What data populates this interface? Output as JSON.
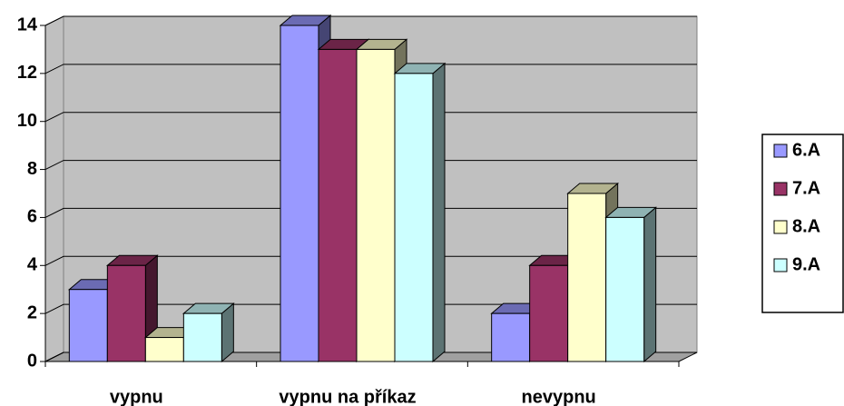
{
  "chart_data": {
    "type": "bar3d",
    "categories": [
      "vypnu",
      "vypnu na příkaz",
      "nevypnu"
    ],
    "series": [
      {
        "name": "6.A",
        "color": "#9999ff",
        "values": [
          3,
          14,
          2
        ]
      },
      {
        "name": "7.A",
        "color": "#993366",
        "values": [
          4,
          13,
          4
        ]
      },
      {
        "name": "8.A",
        "color": "#ffffcc",
        "values": [
          1,
          13,
          7
        ]
      },
      {
        "name": "9.A",
        "color": "#ccffff",
        "values": [
          2,
          12,
          6
        ]
      }
    ],
    "ylim": [
      0,
      14
    ],
    "yticks": [
      0,
      2,
      4,
      6,
      8,
      10,
      12,
      14
    ],
    "grid": true,
    "legend": "right"
  }
}
